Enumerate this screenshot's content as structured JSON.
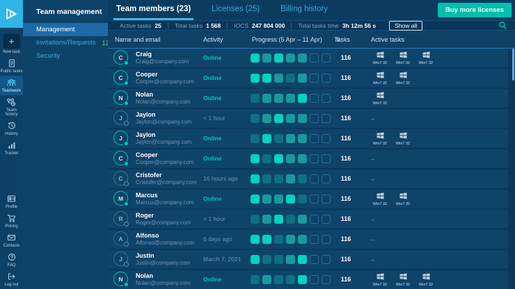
{
  "rail": {
    "items_top": [
      {
        "icon": "plus-icon",
        "label": "New task",
        "active": false
      },
      {
        "icon": "document-icon",
        "label": "Public tasks",
        "active": false
      },
      {
        "icon": "people-icon",
        "label": "Teamwork",
        "active": true
      },
      {
        "icon": "team-history-icon",
        "label": "Team history",
        "active": false
      },
      {
        "icon": "history-clock-icon",
        "label": "History",
        "active": false
      },
      {
        "icon": "bar-chart-icon",
        "label": "Tracker",
        "active": false
      }
    ],
    "items_bottom": [
      {
        "icon": "id-card-icon",
        "label": "Profile",
        "active": false
      },
      {
        "icon": "cart-icon",
        "label": "Pricing",
        "active": false
      },
      {
        "icon": "envelope-icon",
        "label": "Contacts",
        "active": false
      },
      {
        "icon": "question-icon",
        "label": "FAQ",
        "active": false
      },
      {
        "icon": "logout-icon",
        "label": "Log out",
        "active": false
      }
    ]
  },
  "sidebar": {
    "title": "Team management",
    "items": [
      {
        "label": "Management",
        "active": true,
        "badge": null
      },
      {
        "label": "Invitations/Requests",
        "active": false,
        "badge": "12"
      },
      {
        "label": "Security",
        "active": false,
        "badge": null
      }
    ]
  },
  "header": {
    "tabs": [
      {
        "label": "Team members (23)",
        "active": true
      },
      {
        "label": "Licenses (25)",
        "active": false
      },
      {
        "label": "Billing history",
        "active": false
      }
    ],
    "buy_button": "Buy more licenses"
  },
  "statsbar": {
    "stats": [
      {
        "label": "Active tasks",
        "value": "25"
      },
      {
        "label": "Total tasks",
        "value": "1 568"
      },
      {
        "label": "IOCS",
        "value": "247 804 000"
      },
      {
        "label": "Total tasks time",
        "value": "3h 12m 56 s"
      }
    ],
    "show_all": "Show all"
  },
  "table": {
    "columns": {
      "name": "Name and email",
      "activity": "Activity",
      "progress": "Progress (5 Apr – 11 Apr)",
      "tasks": "Tasks",
      "active": "Active tasks"
    },
    "win_label": "Win7 32",
    "empty_marker": "–",
    "rows": [
      {
        "initial": "C",
        "name": "Craig",
        "email": "Craig@company.com",
        "activity": "Online",
        "online": true,
        "progress": [
          3,
          2,
          3,
          2,
          2,
          0,
          0
        ],
        "tasks": "116",
        "win_count": 3
      },
      {
        "initial": "C",
        "name": "Cooper",
        "email": "Cooper@company.com",
        "activity": "Online",
        "online": true,
        "progress": [
          3,
          3,
          2,
          1,
          2,
          0,
          0
        ],
        "tasks": "116",
        "win_count": 2
      },
      {
        "initial": "N",
        "name": "Nolan",
        "email": "Nolan@company.com",
        "activity": "Online",
        "online": true,
        "progress": [
          1,
          2,
          2,
          2,
          3,
          0,
          0
        ],
        "tasks": "116",
        "win_count": 1
      },
      {
        "initial": "J",
        "name": "Jaylon",
        "email": "Jaylon@company.com",
        "activity": "< 1 hour",
        "online": false,
        "progress": [
          1,
          2,
          3,
          2,
          2,
          0,
          0
        ],
        "tasks": "116",
        "win_count": 0
      },
      {
        "initial": "J",
        "name": "Jaylon",
        "email": "Jaylon@company.com",
        "activity": "Online",
        "online": true,
        "progress": [
          1,
          3,
          1,
          2,
          2,
          0,
          0
        ],
        "tasks": "116",
        "win_count": 2
      },
      {
        "initial": "C",
        "name": "Cooper",
        "email": "Cooper@company.com",
        "activity": "Online",
        "online": true,
        "progress": [
          3,
          1,
          3,
          2,
          2,
          0,
          0
        ],
        "tasks": "116",
        "win_count": 0
      },
      {
        "initial": "C",
        "name": "Cristofer",
        "email": "Cristofer@company.com",
        "activity": "16 hours ago",
        "online": false,
        "progress": [
          3,
          1,
          1,
          2,
          1,
          0,
          0
        ],
        "tasks": "116",
        "win_count": 0
      },
      {
        "initial": "M",
        "name": "Marcus",
        "email": "Marcus@company.com",
        "activity": "Online",
        "online": true,
        "progress": [
          3,
          2,
          2,
          3,
          1,
          0,
          0
        ],
        "tasks": "116",
        "win_count": 2
      },
      {
        "initial": "R",
        "name": "Roger",
        "email": "Roger@company.com",
        "activity": "< 1 hour",
        "online": false,
        "progress": [
          1,
          2,
          3,
          1,
          2,
          0,
          0
        ],
        "tasks": "116",
        "win_count": 0
      },
      {
        "initial": "A",
        "name": "Alfonso",
        "email": "Alfonso@company.com",
        "activity": "6 days ago",
        "online": false,
        "progress": [
          3,
          3,
          1,
          2,
          2,
          0,
          0
        ],
        "tasks": "116",
        "win_count": 0
      },
      {
        "initial": "J",
        "name": "Justin",
        "email": "Justin@company.com",
        "activity": "March 7, 2021",
        "online": false,
        "progress": [
          3,
          1,
          1,
          2,
          3,
          0,
          0
        ],
        "tasks": "116",
        "win_count": 0
      },
      {
        "initial": "N",
        "name": "Nolan",
        "email": "Nolan@company.com",
        "activity": "Online",
        "online": true,
        "progress": [
          1,
          2,
          1,
          1,
          3,
          0,
          0
        ],
        "tasks": "116",
        "win_count": 3
      }
    ]
  },
  "colors": {
    "accent_teal": "#00cab8",
    "accent_blue": "#4db3e8",
    "buy_button": "#02bead",
    "badge_green": "#3cb54a",
    "scrollbar": "#55aff0",
    "progress_levels": [
      "transparent",
      "#0e6f85",
      "#189a9f",
      "#00d4bf"
    ]
  }
}
